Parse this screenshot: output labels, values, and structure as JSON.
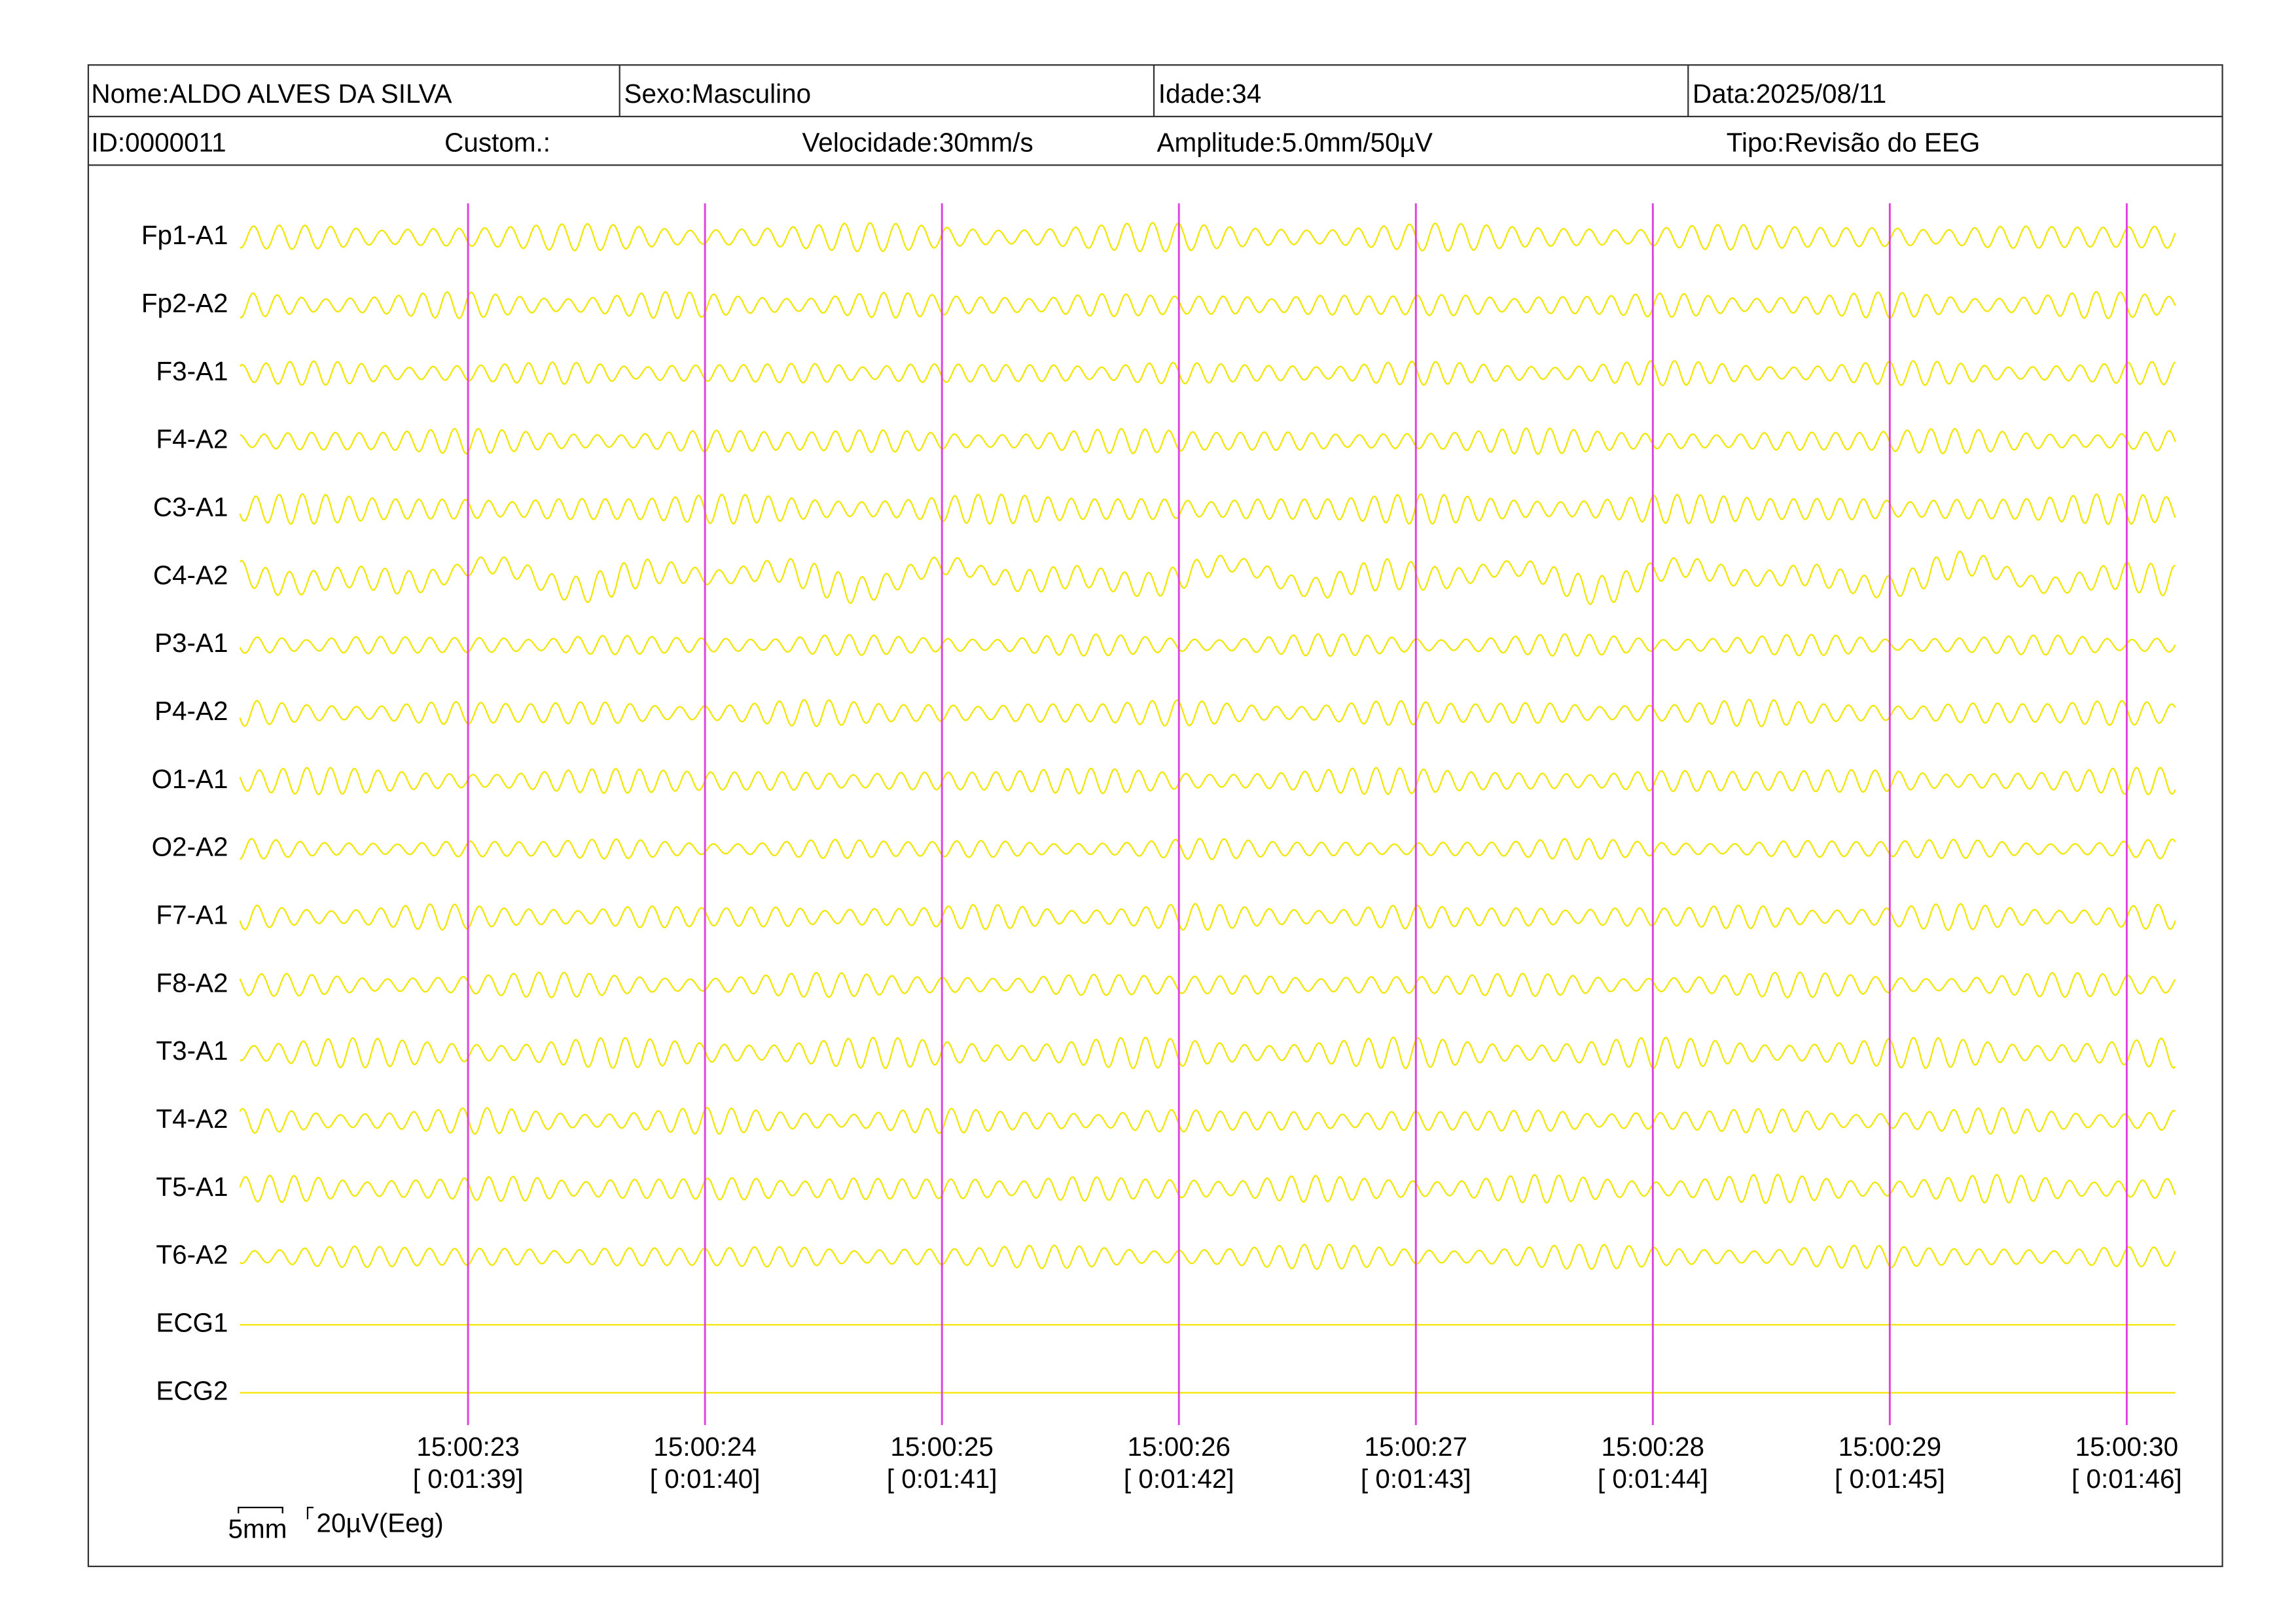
{
  "header": {
    "row1": [
      "Nome:ALDO ALVES DA SILVA",
      "Sexo:Masculino",
      "Idade:34",
      "Data:2025/08/11"
    ],
    "row2": [
      "ID:0000011",
      "Custom.:",
      "Velocidade:30mm/s",
      "Amplitude:5.0mm/50µV",
      "Tipo:Revisão do EEG"
    ]
  },
  "channels": [
    "Fp1-A1",
    "Fp2-A2",
    "F3-A1",
    "F4-A2",
    "C3-A1",
    "C4-A2",
    "P3-A1",
    "P4-A2",
    "O1-A1",
    "O2-A2",
    "F7-A1",
    "F8-A2",
    "T3-A1",
    "T4-A2",
    "T5-A1",
    "T6-A2",
    "ECG1",
    "ECG2"
  ],
  "time_marks": [
    {
      "time": "15:00:23",
      "elapsed": "[ 0:01:39]"
    },
    {
      "time": "15:00:24",
      "elapsed": "[ 0:01:40]"
    },
    {
      "time": "15:00:25",
      "elapsed": "[ 0:01:41]"
    },
    {
      "time": "15:00:26",
      "elapsed": "[ 0:01:42]"
    },
    {
      "time": "15:00:27",
      "elapsed": "[ 0:01:43]"
    },
    {
      "time": "15:00:28",
      "elapsed": "[ 0:01:44]"
    },
    {
      "time": "15:00:29",
      "elapsed": "[ 0:01:45]"
    },
    {
      "time": "15:00:30",
      "elapsed": "[ 0:01:46]"
    }
  ],
  "scale": {
    "time": "5mm",
    "amplitude": "20µV(Eeg)"
  }
}
